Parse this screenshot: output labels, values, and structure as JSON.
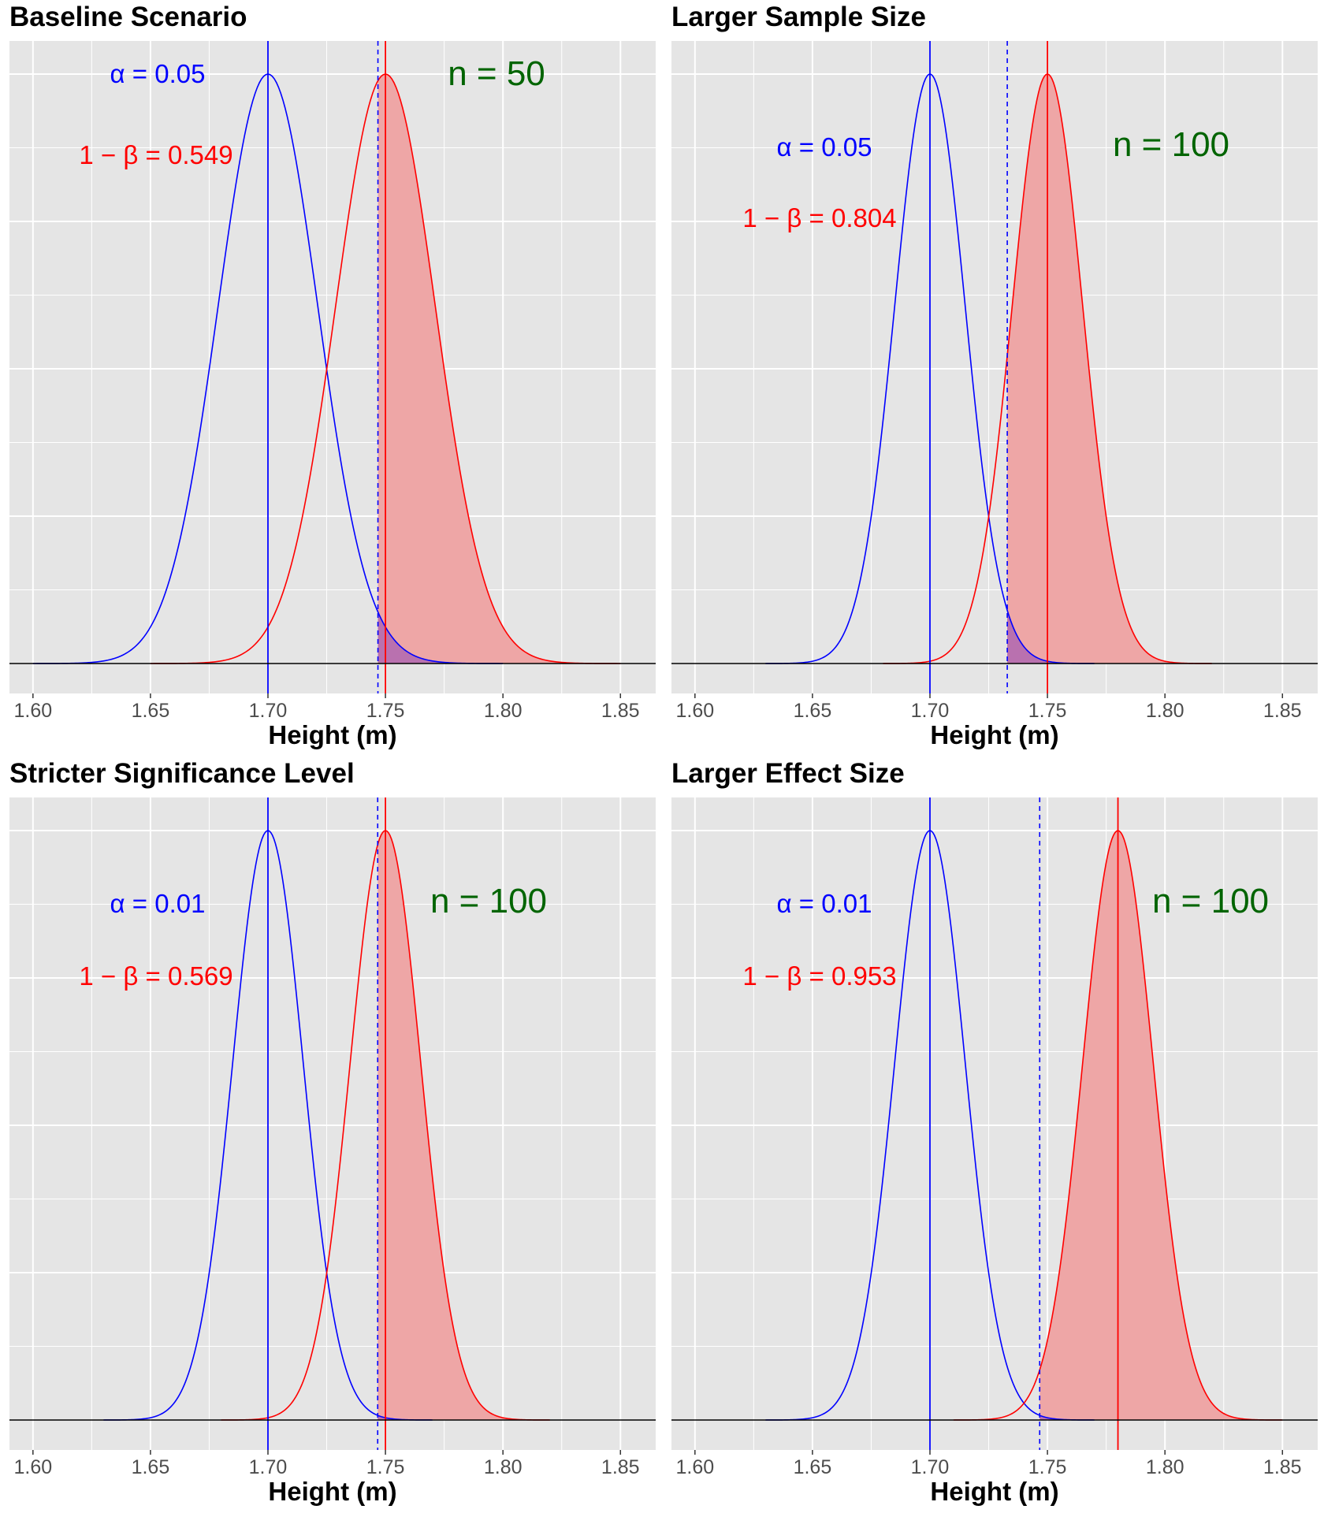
{
  "colors": {
    "null_curve": "#0000ff",
    "alt_curve": "#ff0000",
    "power_fill": "#eea6a6",
    "alpha_fill": "#b36bb0",
    "n_label": "#006400",
    "panel_bg": "#e5e5e5",
    "grid": "#ffffff"
  },
  "chart_data": [
    {
      "type": "area",
      "title": "Baseline Scenario",
      "xlabel": "Height (m)",
      "ylabel": "",
      "xlim": [
        1.59,
        1.865
      ],
      "x_ticks": [
        "1.60",
        "1.65",
        "1.70",
        "1.75",
        "1.80",
        "1.85"
      ],
      "grid": true,
      "null_mean": 1.7,
      "alt_mean": 1.75,
      "sd": 0.0212,
      "critical_value": 1.7468,
      "null_range": [
        1.6,
        1.8
      ],
      "alt_range": [
        1.65,
        1.85
      ],
      "alpha_label": "α = 0.05",
      "power_label": "1 − β = 0.549",
      "n_label": "n = 50"
    },
    {
      "type": "area",
      "title": "Larger Sample Size",
      "xlabel": "Height (m)",
      "ylabel": "",
      "xlim": [
        1.59,
        1.865
      ],
      "x_ticks": [
        "1.60",
        "1.65",
        "1.70",
        "1.75",
        "1.80",
        "1.85"
      ],
      "grid": true,
      "null_mean": 1.7,
      "alt_mean": 1.75,
      "sd": 0.015,
      "critical_value": 1.7329,
      "null_range": [
        1.63,
        1.77
      ],
      "alt_range": [
        1.68,
        1.82
      ],
      "alpha_label": "α = 0.05",
      "power_label": "1 − β = 0.804",
      "n_label": "n = 100"
    },
    {
      "type": "area",
      "title": "Stricter Significance Level",
      "xlabel": "Height (m)",
      "ylabel": "",
      "xlim": [
        1.59,
        1.865
      ],
      "x_ticks": [
        "1.60",
        "1.65",
        "1.70",
        "1.75",
        "1.80",
        "1.85"
      ],
      "grid": true,
      "null_mean": 1.7,
      "alt_mean": 1.75,
      "sd": 0.015,
      "critical_value": 1.7467,
      "null_range": [
        1.63,
        1.77
      ],
      "alt_range": [
        1.68,
        1.82
      ],
      "alpha_label": "α = 0.01",
      "power_label": "1 − β = 0.569",
      "n_label": "n = 100"
    },
    {
      "type": "area",
      "title": "Larger Effect Size",
      "xlabel": "Height (m)",
      "ylabel": "",
      "xlim": [
        1.59,
        1.865
      ],
      "x_ticks": [
        "1.60",
        "1.65",
        "1.70",
        "1.75",
        "1.80",
        "1.85"
      ],
      "grid": true,
      "null_mean": 1.7,
      "alt_mean": 1.78,
      "sd": 0.015,
      "critical_value": 1.7467,
      "null_range": [
        1.63,
        1.77
      ],
      "alt_range": [
        1.71,
        1.85
      ],
      "alpha_label": "α = 0.01",
      "power_label": "1 − β = 0.953",
      "n_label": "n = 100"
    }
  ]
}
